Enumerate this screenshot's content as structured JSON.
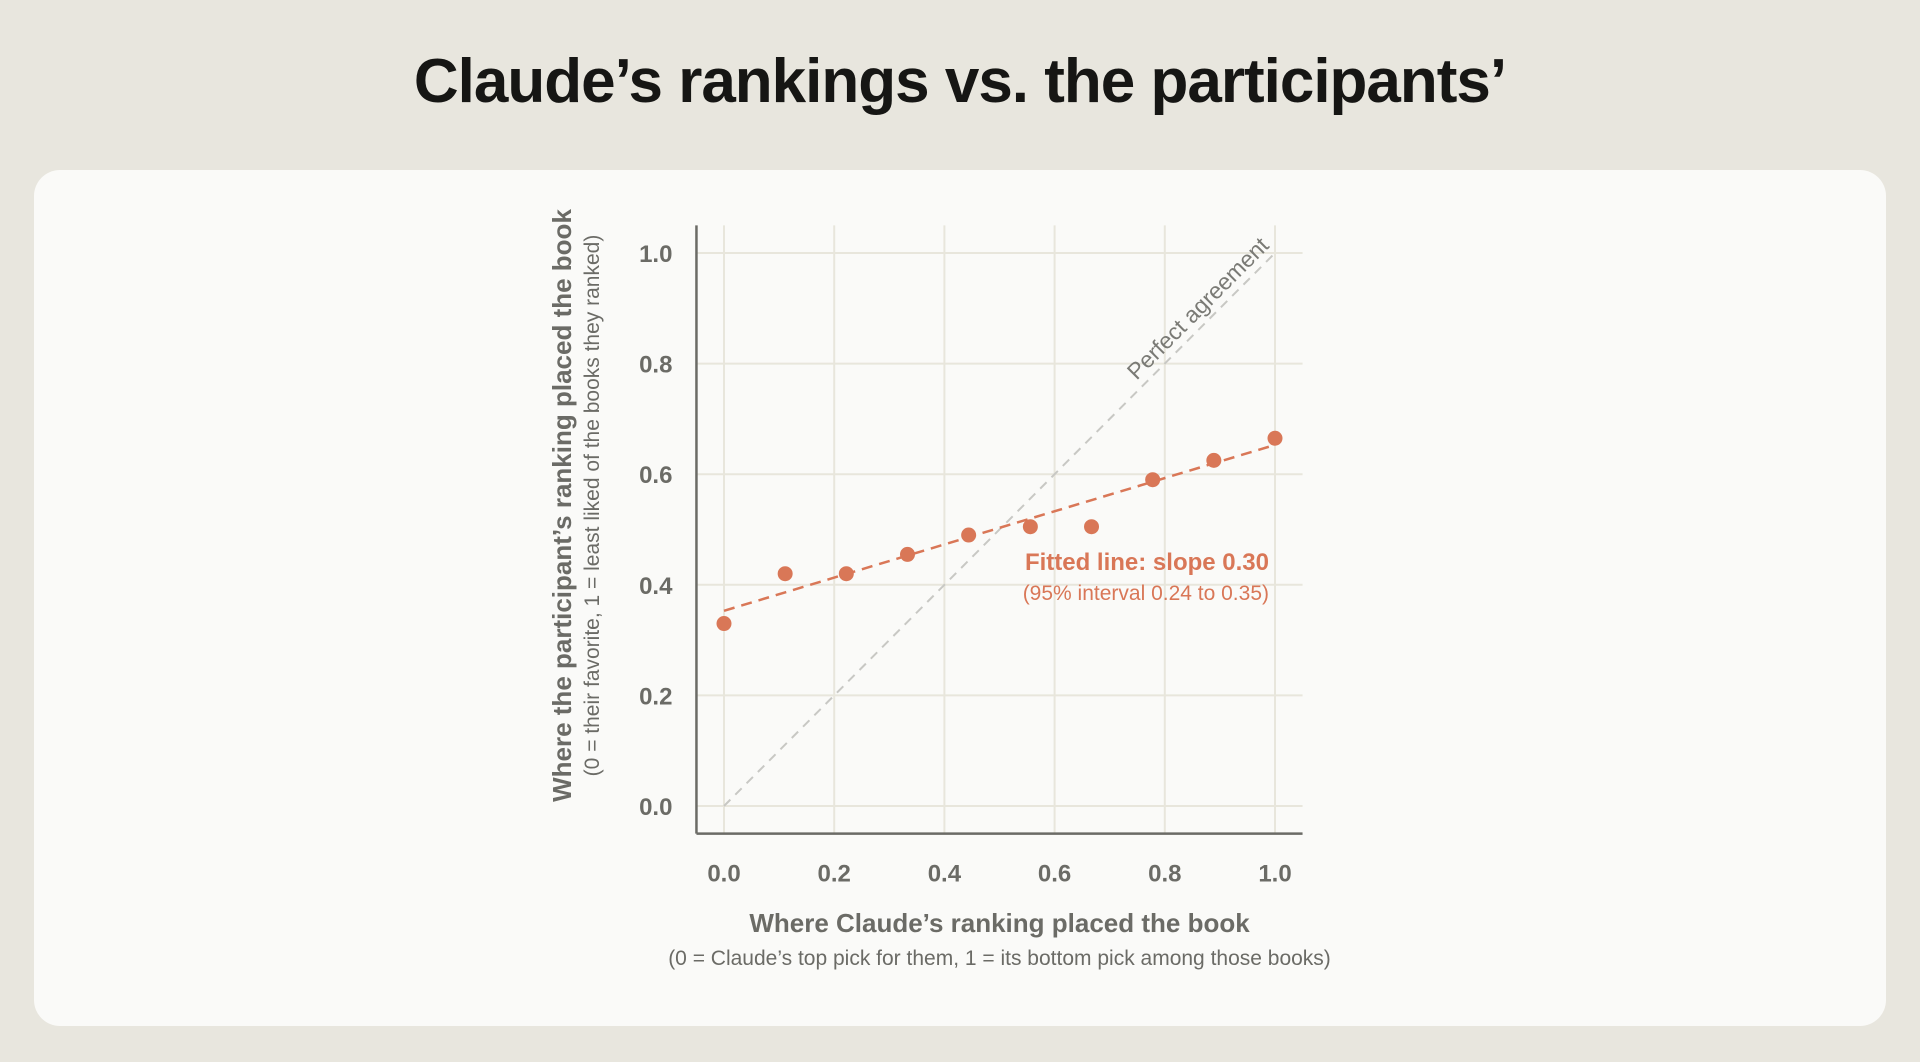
{
  "page": {
    "title": "Claude’s rankings vs. the participants’"
  },
  "chart_data": {
    "type": "scatter",
    "xlabel": "Where Claude’s ranking placed the book",
    "xlabel_note": "(0 = Claude’s top pick for them, 1 = its bottom pick among those books)",
    "ylabel": "Where the participant’s ranking placed the book",
    "ylabel_note": "(0 = their favorite, 1 = least liked of the books they ranked)",
    "xlim": [
      -0.05,
      1.05
    ],
    "ylim": [
      -0.05,
      1.05
    ],
    "x_ticks": [
      "0.0",
      "0.2",
      "0.4",
      "0.6",
      "0.8",
      "1.0"
    ],
    "y_ticks": [
      "0.0",
      "0.2",
      "0.4",
      "0.6",
      "0.8",
      "1.0"
    ],
    "tick_values": [
      0,
      0.2,
      0.4,
      0.6,
      0.8,
      1.0
    ],
    "grid": true,
    "points": {
      "x": [
        0.0,
        0.111,
        0.222,
        0.333,
        0.444,
        0.556,
        0.667,
        0.778,
        0.889,
        1.0
      ],
      "y": [
        0.33,
        0.42,
        0.42,
        0.455,
        0.49,
        0.505,
        0.505,
        0.59,
        0.625,
        0.665
      ]
    },
    "fit_line": {
      "slope": 0.3,
      "intercept": 0.353,
      "label": "Fitted line: slope 0.30",
      "interval_label": "(95% interval 0.24 to 0.35)"
    },
    "reference_line": {
      "label": "Perfect agreement",
      "from": [
        0,
        0
      ],
      "to": [
        1,
        1
      ]
    },
    "colors": {
      "points": "#d97757",
      "fit_line": "#d97757",
      "reference_line": "#c8c8c4",
      "grid": "#e8e6dc",
      "axis": "#6b6b66",
      "text": "#6b6b66",
      "reference_label": "#7a7a75"
    }
  }
}
